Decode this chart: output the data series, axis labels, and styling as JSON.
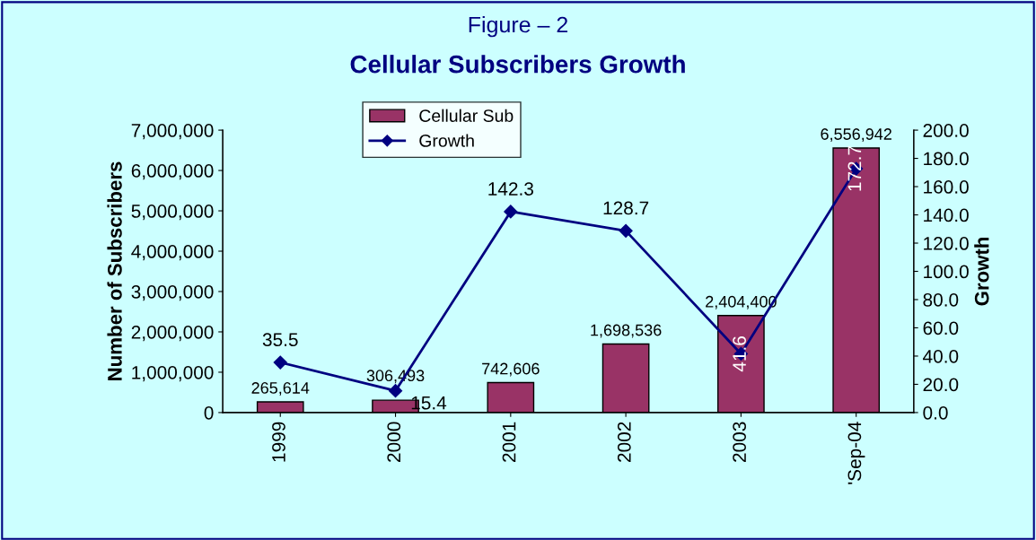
{
  "chart_data": {
    "type": "bar",
    "subtitle": "Figure – 2",
    "title": "Cellular Subscribers Growth",
    "ylabel": "Number of Subscribers",
    "y2label": "Growth",
    "categories": [
      "1999",
      "2000",
      "2001",
      "2002",
      "2003",
      "'Sep-04"
    ],
    "series": [
      {
        "name": "Cellular Sub",
        "color": "#993366",
        "values": [
          265614,
          306493,
          742606,
          1698536,
          2404400,
          6556942
        ],
        "value_labels": [
          "265,614",
          "306,493",
          "742,606",
          "1,698,536",
          "2,404,400",
          "6,556,942"
        ]
      },
      {
        "name": "Growth",
        "type": "line",
        "axis": "y2",
        "color": "#000080",
        "marker": "diamond",
        "values": [
          35.5,
          15.4,
          142.3,
          128.7,
          41.6,
          172.7
        ]
      }
    ],
    "ylim": [
      0,
      7000000
    ],
    "yticks": [
      0,
      {
        "value": 1000000,
        "label": "1,000,000"
      },
      {
        "value": 2000000,
        "label": "2,000,000"
      },
      {
        "value": 3000000,
        "label": "3,000,000"
      },
      {
        "value": 4000000,
        "label": "4,000,000"
      },
      {
        "value": 5000000,
        "label": "5,000,000"
      },
      {
        "value": 6000000,
        "label": "6,000,000"
      },
      {
        "value": 7000000,
        "label": "7,000,000"
      }
    ],
    "y2lim": [
      0,
      200
    ],
    "y2ticks": [
      {
        "value": 0,
        "label": "0.0"
      },
      {
        "value": 20,
        "label": "20.0"
      },
      {
        "value": 40,
        "label": "40.0"
      },
      {
        "value": 60,
        "label": "60.0"
      },
      {
        "value": 80,
        "label": "80.0"
      },
      {
        "value": 100,
        "label": "100.0"
      },
      {
        "value": 120,
        "label": "120.0"
      },
      {
        "value": 140,
        "label": "140.0"
      },
      {
        "value": 160,
        "label": "160.0"
      },
      {
        "value": 180,
        "label": "180.0"
      },
      {
        "value": 200,
        "label": "200.0"
      }
    ],
    "data_labels": true,
    "grid": false,
    "legend": "top"
  }
}
